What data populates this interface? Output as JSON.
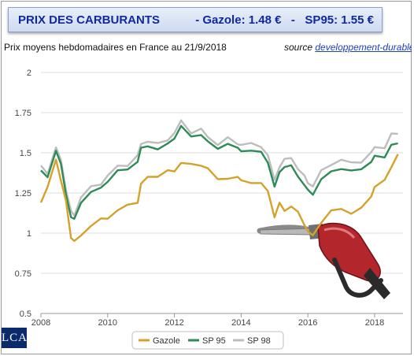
{
  "header": {
    "title": "PRIX DES CARBURANTS",
    "prices": "- Gazole: 1.48 €   -   SP95: 1.55 €"
  },
  "subtitle": "Prix moyens hebdomadaires en France au 21/9/2018",
  "source": {
    "label": "source",
    "link_text": "developpement-durable"
  },
  "logo_text": "LCA",
  "chart_data": {
    "type": "line",
    "title": "",
    "xlabel": "",
    "ylabel": "",
    "xlim": [
      2008,
      2018.85
    ],
    "ylim": [
      0.5,
      2
    ],
    "yticks": [
      0.5,
      0.75,
      1,
      1.25,
      1.5,
      1.75,
      2
    ],
    "ytick_labels": [
      "0.5",
      "0.75",
      "1",
      "1.25",
      "1.5",
      "1.75",
      "2"
    ],
    "xticks": [
      2008,
      2010,
      2012,
      2014,
      2016,
      2018
    ],
    "xtick_labels": [
      "2008",
      "2010",
      "2012",
      "2014",
      "2016",
      "2018"
    ],
    "grid": true,
    "legend": "bottom-center",
    "series": [
      {
        "name": "Gazole",
        "color": "#d4a22a",
        "x": [
          2008.0,
          2008.2,
          2008.45,
          2008.6,
          2008.75,
          2008.9,
          2009.0,
          2009.2,
          2009.5,
          2009.8,
          2010.0,
          2010.3,
          2010.6,
          2010.9,
          2011.0,
          2011.2,
          2011.5,
          2011.8,
          2012.0,
          2012.2,
          2012.5,
          2012.8,
          2013.0,
          2013.3,
          2013.6,
          2013.9,
          2014.0,
          2014.3,
          2014.6,
          2014.8,
          2015.0,
          2015.15,
          2015.3,
          2015.5,
          2015.7,
          2015.9,
          2016.0,
          2016.15,
          2016.4,
          2016.7,
          2017.0,
          2017.3,
          2017.6,
          2017.9,
          2018.0,
          2018.3,
          2018.5,
          2018.7
        ],
        "values": [
          1.19,
          1.28,
          1.47,
          1.32,
          1.2,
          0.98,
          0.94,
          0.99,
          1.05,
          1.08,
          1.1,
          1.14,
          1.17,
          1.2,
          1.3,
          1.35,
          1.36,
          1.38,
          1.39,
          1.44,
          1.42,
          1.43,
          1.4,
          1.33,
          1.35,
          1.34,
          1.33,
          1.32,
          1.3,
          1.27,
          1.1,
          1.18,
          1.15,
          1.16,
          1.13,
          1.06,
          1.0,
          0.99,
          1.07,
          1.13,
          1.16,
          1.12,
          1.15,
          1.24,
          1.28,
          1.33,
          1.42,
          1.48
        ]
      },
      {
        "name": "SP 95",
        "color": "#2e8b57",
        "x": [
          2008.0,
          2008.2,
          2008.45,
          2008.6,
          2008.75,
          2008.9,
          2009.0,
          2009.2,
          2009.5,
          2009.8,
          2010.0,
          2010.3,
          2010.6,
          2010.9,
          2011.0,
          2011.2,
          2011.5,
          2011.8,
          2012.0,
          2012.2,
          2012.5,
          2012.8,
          2013.0,
          2013.3,
          2013.6,
          2013.9,
          2014.0,
          2014.3,
          2014.6,
          2014.8,
          2015.0,
          2015.15,
          2015.3,
          2015.5,
          2015.7,
          2015.9,
          2016.0,
          2016.15,
          2016.4,
          2016.7,
          2017.0,
          2017.3,
          2017.6,
          2017.9,
          2018.0,
          2018.3,
          2018.5,
          2018.7
        ],
        "values": [
          1.38,
          1.35,
          1.52,
          1.42,
          1.25,
          1.1,
          1.08,
          1.2,
          1.25,
          1.28,
          1.33,
          1.38,
          1.4,
          1.45,
          1.52,
          1.55,
          1.52,
          1.55,
          1.6,
          1.66,
          1.6,
          1.62,
          1.56,
          1.53,
          1.56,
          1.52,
          1.52,
          1.51,
          1.5,
          1.45,
          1.28,
          1.38,
          1.42,
          1.41,
          1.36,
          1.3,
          1.26,
          1.25,
          1.33,
          1.38,
          1.41,
          1.38,
          1.4,
          1.45,
          1.47,
          1.48,
          1.55,
          1.55
        ]
      },
      {
        "name": "SP 98",
        "color": "#bdbdbd",
        "x": [
          2008.0,
          2008.2,
          2008.45,
          2008.6,
          2008.75,
          2008.9,
          2009.0,
          2009.2,
          2009.5,
          2009.8,
          2010.0,
          2010.3,
          2010.6,
          2010.9,
          2011.0,
          2011.2,
          2011.5,
          2011.8,
          2012.0,
          2012.2,
          2012.5,
          2012.8,
          2013.0,
          2013.3,
          2013.6,
          2013.9,
          2014.0,
          2014.3,
          2014.6,
          2014.8,
          2015.0,
          2015.15,
          2015.3,
          2015.5,
          2015.7,
          2015.9,
          2016.0,
          2016.15,
          2016.4,
          2016.7,
          2017.0,
          2017.3,
          2017.6,
          2017.9,
          2018.0,
          2018.3,
          2018.5,
          2018.7
        ],
        "values": [
          1.41,
          1.38,
          1.53,
          1.45,
          1.28,
          1.13,
          1.11,
          1.23,
          1.28,
          1.31,
          1.36,
          1.41,
          1.43,
          1.48,
          1.55,
          1.58,
          1.55,
          1.58,
          1.63,
          1.69,
          1.63,
          1.65,
          1.59,
          1.56,
          1.59,
          1.55,
          1.56,
          1.55,
          1.54,
          1.49,
          1.32,
          1.42,
          1.46,
          1.46,
          1.41,
          1.35,
          1.31,
          1.3,
          1.38,
          1.43,
          1.46,
          1.43,
          1.45,
          1.5,
          1.53,
          1.54,
          1.61,
          1.62
        ]
      }
    ]
  }
}
